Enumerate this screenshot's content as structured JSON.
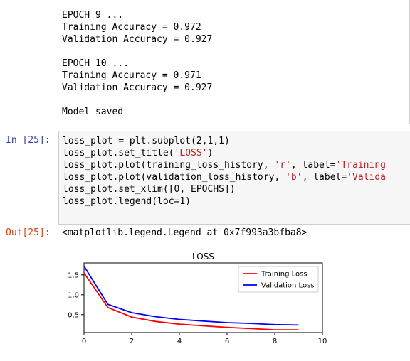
{
  "stream_output": {
    "lines": [
      "EPOCH 9 ...",
      "Training Accuracy = 0.972",
      "Validation Accuracy = 0.927",
      "",
      "EPOCH 10 ...",
      "Training Accuracy = 0.971",
      "Validation Accuracy = 0.927",
      "",
      "Model saved"
    ]
  },
  "input_cell": {
    "prompt": "In [25]:",
    "code": [
      {
        "parts": [
          {
            "t": "loss_plot = plt.subplot(2,1,1)"
          }
        ]
      },
      {
        "parts": [
          {
            "t": "loss_plot.set_title("
          },
          {
            "t": "'LOSS'",
            "s": true
          },
          {
            "t": ")"
          }
        ]
      },
      {
        "parts": [
          {
            "t": "loss_plot.plot(training_loss_history, "
          },
          {
            "t": "'r'",
            "s": true
          },
          {
            "t": ", label="
          },
          {
            "t": "'Training",
            "s": true
          }
        ]
      },
      {
        "parts": [
          {
            "t": "loss_plot.plot(validation_loss_history, "
          },
          {
            "t": "'b'",
            "s": true
          },
          {
            "t": ", label="
          },
          {
            "t": "'Valida",
            "s": true
          }
        ]
      },
      {
        "parts": [
          {
            "t": "loss_plot.set_xlim([0, EPOCHS])"
          }
        ]
      },
      {
        "parts": [
          {
            "t": "loss_plot.legend(loc=1)"
          }
        ]
      }
    ]
  },
  "output_cell": {
    "prompt": "Out[25]:",
    "text": "<matplotlib.legend.Legend at 0x7f993a3bfba8>"
  },
  "chart_data": {
    "type": "line",
    "title": "LOSS",
    "xlabel": "",
    "ylabel": "",
    "xlim": [
      0,
      10
    ],
    "ylim": [
      0.05,
      1.8
    ],
    "xticks": [
      0,
      2,
      4,
      6,
      8,
      10
    ],
    "yticks": [
      0.5,
      1.0,
      1.5
    ],
    "legend_loc": "upper right",
    "grid": false,
    "series": [
      {
        "name": "Training Loss",
        "color": "#ff0000",
        "x": [
          0,
          1,
          2,
          3,
          4,
          5,
          6,
          7,
          8,
          9
        ],
        "values": [
          1.55,
          0.68,
          0.44,
          0.33,
          0.26,
          0.22,
          0.18,
          0.15,
          0.12,
          0.12
        ]
      },
      {
        "name": "Validation Loss",
        "color": "#0000ff",
        "x": [
          0,
          1,
          2,
          3,
          4,
          5,
          6,
          7,
          8,
          9
        ],
        "values": [
          1.72,
          0.76,
          0.55,
          0.45,
          0.38,
          0.34,
          0.3,
          0.28,
          0.25,
          0.24
        ]
      }
    ]
  }
}
